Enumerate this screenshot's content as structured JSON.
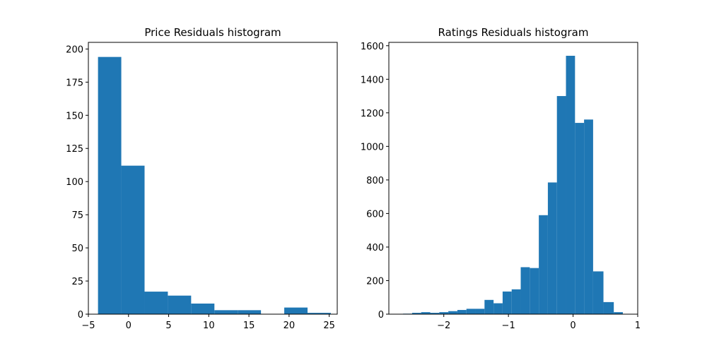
{
  "chart_data": [
    {
      "type": "histogram",
      "title": "Price Residuals histogram",
      "xlabel": "",
      "ylabel": "",
      "xlim": [
        -5,
        26
      ],
      "ylim": [
        0,
        205
      ],
      "xticks": [
        -5,
        0,
        5,
        10,
        15,
        20,
        25
      ],
      "yticks": [
        0,
        25,
        50,
        75,
        100,
        125,
        150,
        175,
        200
      ],
      "color": "#1f77b4",
      "grid": false,
      "bin_edges": [
        -3.8,
        -0.9,
        2.0,
        4.9,
        7.8,
        10.7,
        13.6,
        16.5,
        19.4,
        22.3,
        25.2
      ],
      "counts": [
        194,
        112,
        17,
        14,
        8,
        3,
        3,
        0,
        5,
        1
      ]
    },
    {
      "type": "histogram",
      "title": "Ratings Residuals histogram",
      "xlabel": "",
      "ylabel": "",
      "xlim": [
        -2.85,
        1.0
      ],
      "ylim": [
        0,
        1620
      ],
      "xticks": [
        -2,
        -1,
        0,
        1
      ],
      "yticks": [
        0,
        200,
        400,
        600,
        800,
        1000,
        1200,
        1400,
        1600
      ],
      "color": "#1f77b4",
      "grid": false,
      "bin_edges": [
        -2.63,
        -2.49,
        -2.35,
        -2.21,
        -2.07,
        -1.93,
        -1.79,
        -1.65,
        -1.51,
        -1.37,
        -1.23,
        -1.09,
        -0.95,
        -0.81,
        -0.67,
        -0.53,
        -0.39,
        -0.25,
        -0.11,
        0.03,
        0.17,
        0.31,
        0.47,
        0.63,
        0.77,
        0.93
      ],
      "counts": [
        3,
        8,
        12,
        8,
        12,
        18,
        25,
        32,
        32,
        85,
        65,
        135,
        148,
        280,
        275,
        590,
        785,
        1300,
        1540,
        1140,
        1160,
        255,
        72,
        12,
        0
      ]
    }
  ]
}
